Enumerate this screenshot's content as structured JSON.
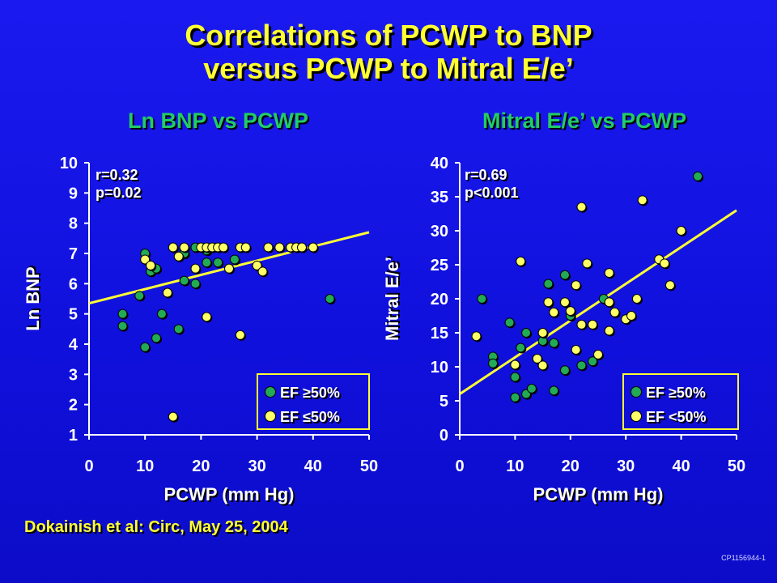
{
  "title_line1": "Correlations of PCWP to BNP",
  "title_line2": "versus PCWP to Mitral E/e’",
  "citation": "Dokainish et al:  Circ, May 25, 2004",
  "footer_code": "CP1156944-1",
  "colors": {
    "background": "#1414e6",
    "title": "#ffff33",
    "subtitle": "#22cc66",
    "ef_ge_50": "#22aa55",
    "ef_le_50": "#ffff66",
    "regression": "#ffff33"
  },
  "chart_data": [
    {
      "type": "scatter",
      "title": "Ln BNP vs PCWP",
      "xlabel": "PCWP (mm Hg)",
      "ylabel": "Ln BNP",
      "xlim": [
        0,
        50
      ],
      "ylim": [
        1,
        10
      ],
      "xticks": [
        0,
        10,
        20,
        30,
        40,
        50
      ],
      "yticks": [
        1,
        2,
        3,
        4,
        5,
        6,
        7,
        8,
        9,
        10
      ],
      "annotations": [
        "r=0.32",
        "p=0.02"
      ],
      "regression_line": {
        "x": [
          0,
          50
        ],
        "y": [
          5.35,
          7.7
        ]
      },
      "legend_position": "bottom-right",
      "series": [
        {
          "name": "EF ≥50%",
          "color": "#22aa55",
          "points": [
            [
              6,
              5.0
            ],
            [
              6,
              4.6
            ],
            [
              9,
              5.6
            ],
            [
              10,
              7.0
            ],
            [
              10,
              3.9
            ],
            [
              11,
              6.4
            ],
            [
              12,
              6.5
            ],
            [
              12,
              4.2
            ],
            [
              13,
              5.0
            ],
            [
              16,
              4.5
            ],
            [
              17,
              7.0
            ],
            [
              17,
              6.1
            ],
            [
              19,
              7.2
            ],
            [
              19,
              6.0
            ],
            [
              21,
              6.7
            ],
            [
              21,
              7.1
            ],
            [
              23,
              6.7
            ],
            [
              26,
              6.8
            ],
            [
              43,
              5.5
            ]
          ]
        },
        {
          "name": "EF ≤50%",
          "color": "#ffff66",
          "points": [
            [
              10,
              6.8
            ],
            [
              11,
              6.6
            ],
            [
              14,
              5.7
            ],
            [
              15,
              7.2
            ],
            [
              16,
              6.9
            ],
            [
              17,
              7.2
            ],
            [
              19,
              6.5
            ],
            [
              20,
              7.2
            ],
            [
              21,
              7.2
            ],
            [
              22,
              7.2
            ],
            [
              23,
              7.2
            ],
            [
              24,
              7.2
            ],
            [
              21,
              4.9
            ],
            [
              25,
              6.5
            ],
            [
              27,
              7.2
            ],
            [
              28,
              7.2
            ],
            [
              27,
              4.3
            ],
            [
              30,
              6.6
            ],
            [
              31,
              6.4
            ],
            [
              32,
              7.2
            ],
            [
              34,
              7.2
            ],
            [
              36,
              7.2
            ],
            [
              37,
              7.2
            ],
            [
              38,
              7.2
            ],
            [
              40,
              7.2
            ],
            [
              15,
              1.6
            ]
          ]
        }
      ]
    },
    {
      "type": "scatter",
      "title": "Mitral E/e’ vs PCWP",
      "xlabel": "PCWP (mm Hg)",
      "ylabel": "Mitral E/e’",
      "xlim": [
        0,
        50
      ],
      "ylim": [
        0,
        40
      ],
      "xticks": [
        0,
        10,
        20,
        30,
        40,
        50
      ],
      "yticks": [
        0,
        5,
        10,
        15,
        20,
        25,
        30,
        35,
        40
      ],
      "annotations": [
        "r=0.69",
        "p<0.001"
      ],
      "regression_line": {
        "x": [
          0,
          50
        ],
        "y": [
          6.0,
          33.0
        ]
      },
      "legend_position": "bottom-right",
      "series": [
        {
          "name": "EF ≥50%",
          "color": "#22aa55",
          "points": [
            [
              4,
              20
            ],
            [
              6,
              11.5
            ],
            [
              6,
              10.5
            ],
            [
              9,
              16.5
            ],
            [
              10,
              8.5
            ],
            [
              10,
              5.5
            ],
            [
              11,
              12.8
            ],
            [
              12,
              15.0
            ],
            [
              12,
              6.0
            ],
            [
              13,
              6.8
            ],
            [
              15,
              13.8
            ],
            [
              16,
              22.2
            ],
            [
              17,
              6.5
            ],
            [
              17,
              13.5
            ],
            [
              19,
              23.5
            ],
            [
              19,
              9.5
            ],
            [
              20,
              17.5
            ],
            [
              22,
              10.2
            ],
            [
              24,
              10.8
            ],
            [
              26,
              20
            ],
            [
              43,
              38
            ]
          ]
        },
        {
          "name": "EF <50%",
          "color": "#ffff66",
          "points": [
            [
              3,
              14.5
            ],
            [
              10,
              10.3
            ],
            [
              11,
              25.5
            ],
            [
              14,
              11.2
            ],
            [
              15,
              15
            ],
            [
              15,
              10.2
            ],
            [
              16,
              19.5
            ],
            [
              17,
              18
            ],
            [
              19,
              19.5
            ],
            [
              20,
              18.2
            ],
            [
              21,
              12.5
            ],
            [
              21,
              22
            ],
            [
              22,
              16.2
            ],
            [
              22,
              33.5
            ],
            [
              23,
              25.2
            ],
            [
              24,
              16.2
            ],
            [
              25,
              11.8
            ],
            [
              27,
              15.3
            ],
            [
              27,
              19.5
            ],
            [
              27,
              23.8
            ],
            [
              28,
              18.0
            ],
            [
              30,
              17.0
            ],
            [
              31,
              17.5
            ],
            [
              32,
              20
            ],
            [
              33,
              34.5
            ],
            [
              36,
              25.8
            ],
            [
              37,
              25.2
            ],
            [
              38,
              22
            ],
            [
              40,
              30
            ]
          ]
        }
      ]
    }
  ]
}
